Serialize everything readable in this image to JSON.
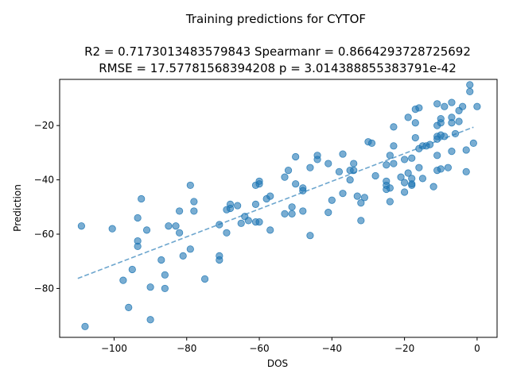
{
  "chart_data": {
    "type": "scatter",
    "title": "Training predictions for CYTOF",
    "subtitle_line1": "R2 = 0.7173013483579843 Spearmanr = 0.8664293728725692",
    "subtitle_line2": "RMSE = 17.57781568394208 p = 3.014388855383791e-42",
    "xlabel": "DOS",
    "ylabel": "Prediction",
    "xlim": [
      -115,
      5.5
    ],
    "ylim": [
      -98,
      -3
    ],
    "xticks": [
      -100,
      -80,
      -60,
      -40,
      -20,
      0
    ],
    "yticks": [
      -80,
      -60,
      -40,
      -20
    ],
    "xtick_labels": [
      "−100",
      "−80",
      "−60",
      "−40",
      "−20",
      "0"
    ],
    "ytick_labels": [
      "−80",
      "−60",
      "−40",
      "−20"
    ],
    "grid": false,
    "point_color": "#1f77b4",
    "point_alpha": 0.6,
    "trend_line": {
      "style": "dashed",
      "x": [
        -110,
        -1
      ],
      "y": [
        -76.3,
        -20.6
      ]
    },
    "points": [
      [
        -109,
        -57
      ],
      [
        -108,
        -94
      ],
      [
        -100.5,
        -58
      ],
      [
        -97.5,
        -77
      ],
      [
        -96,
        -87
      ],
      [
        -95,
        -73
      ],
      [
        -93.5,
        -54
      ],
      [
        -93.5,
        -62.5
      ],
      [
        -93.5,
        -64.5
      ],
      [
        -92.5,
        -47
      ],
      [
        -91,
        -58.5
      ],
      [
        -90,
        -79.5
      ],
      [
        -90,
        -91.5
      ],
      [
        -87,
        -69.5
      ],
      [
        -86,
        -75
      ],
      [
        -86,
        -80
      ],
      [
        -85,
        -57
      ],
      [
        -83,
        -57
      ],
      [
        -82,
        -51.5
      ],
      [
        -82,
        -59.5
      ],
      [
        -81,
        -68
      ],
      [
        -79,
        -42
      ],
      [
        -79,
        -65.5
      ],
      [
        -78,
        -48
      ],
      [
        -78,
        -51.5
      ],
      [
        -75,
        -76.5
      ],
      [
        -71,
        -56.5
      ],
      [
        -71,
        -68
      ],
      [
        -71,
        -69.5
      ],
      [
        -69,
        -51
      ],
      [
        -69,
        -59.5
      ],
      [
        -68,
        -49
      ],
      [
        -68,
        -50.5
      ],
      [
        -66,
        -49.5
      ],
      [
        -65,
        -56
      ],
      [
        -64,
        -53.5
      ],
      [
        -63,
        -55
      ],
      [
        -61,
        -42
      ],
      [
        -61,
        -49
      ],
      [
        -61,
        -55.5
      ],
      [
        -60,
        -40.5
      ],
      [
        -60,
        -41.5
      ],
      [
        -60,
        -55.5
      ],
      [
        -58,
        -47
      ],
      [
        -57,
        -46
      ],
      [
        -57,
        -58.5
      ],
      [
        -53,
        -39
      ],
      [
        -53,
        -52.5
      ],
      [
        -52,
        -36.5
      ],
      [
        -51,
        -50
      ],
      [
        -51,
        -52.5
      ],
      [
        -50,
        -31.5
      ],
      [
        -50,
        -41.5
      ],
      [
        -48,
        -43
      ],
      [
        -48,
        -44
      ],
      [
        -48,
        -51.5
      ],
      [
        -46,
        -35.5
      ],
      [
        -46,
        -60.5
      ],
      [
        -44,
        -31
      ],
      [
        -44,
        -32.5
      ],
      [
        -41,
        -34
      ],
      [
        -41,
        -52
      ],
      [
        -40,
        -47.5
      ],
      [
        -38,
        -37
      ],
      [
        -37,
        -30.5
      ],
      [
        -37,
        -45
      ],
      [
        -35,
        -36.5
      ],
      [
        -35,
        -40
      ],
      [
        -34,
        -34
      ],
      [
        -34,
        -36.5
      ],
      [
        -33,
        -46
      ],
      [
        -32,
        -48.5
      ],
      [
        -32,
        -55
      ],
      [
        -31,
        -46.5
      ],
      [
        -30,
        -26
      ],
      [
        -29,
        -26.5
      ],
      [
        -28,
        -38.5
      ],
      [
        -25,
        -34.5
      ],
      [
        -25,
        -40.5
      ],
      [
        -25,
        -42
      ],
      [
        -25,
        -43.5
      ],
      [
        -24,
        -31
      ],
      [
        -24,
        -43
      ],
      [
        -24,
        -48
      ],
      [
        -23,
        -20.5
      ],
      [
        -23,
        -27.5
      ],
      [
        -23,
        -34
      ],
      [
        -21,
        -39
      ],
      [
        -20,
        -32.5
      ],
      [
        -20,
        -41
      ],
      [
        -20,
        -44.5
      ],
      [
        -19,
        -17
      ],
      [
        -19,
        -37.5
      ],
      [
        -18,
        -32
      ],
      [
        -18,
        -39.5
      ],
      [
        -18,
        -41.5
      ],
      [
        -18,
        -42
      ],
      [
        -17,
        -14
      ],
      [
        -17,
        -19
      ],
      [
        -17,
        -24.5
      ],
      [
        -16,
        -13.5
      ],
      [
        -16,
        -28.5
      ],
      [
        -16,
        -35.5
      ],
      [
        -15,
        -27.5
      ],
      [
        -15,
        -39.5
      ],
      [
        -14,
        -27.5
      ],
      [
        -13,
        -27
      ],
      [
        -12,
        -42.5
      ],
      [
        -11,
        -12
      ],
      [
        -11,
        -20
      ],
      [
        -11,
        -24
      ],
      [
        -11,
        -25
      ],
      [
        -11,
        -31
      ],
      [
        -11,
        -36.5
      ],
      [
        -10,
        -17.5
      ],
      [
        -10,
        -19
      ],
      [
        -10,
        -23.5
      ],
      [
        -10,
        -36
      ],
      [
        -9,
        -13
      ],
      [
        -9,
        -24
      ],
      [
        -8,
        -35.5
      ],
      [
        -7,
        -11.5
      ],
      [
        -7,
        -17
      ],
      [
        -7,
        -19
      ],
      [
        -7,
        -29.5
      ],
      [
        -6,
        -23
      ],
      [
        -5,
        -14.5
      ],
      [
        -5,
        -18.5
      ],
      [
        -4,
        -13
      ],
      [
        -3,
        -29
      ],
      [
        -3,
        -37
      ],
      [
        -2,
        -5
      ],
      [
        -2,
        -7.5
      ],
      [
        -1,
        -26.5
      ],
      [
        0,
        -13
      ]
    ]
  }
}
